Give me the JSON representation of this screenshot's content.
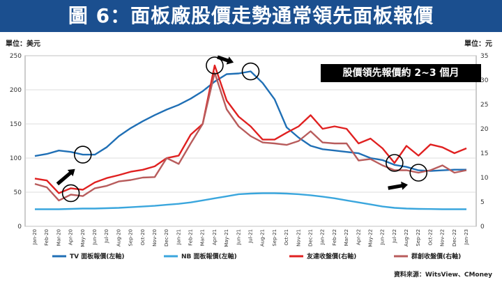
{
  "title": "圖 6：面板廠股價走勢通常領先面板報價",
  "left_unit": "單位：美元",
  "right_unit": "單位：元",
  "callout": "股價領先報價約 2~3 個月",
  "source": "資料來源：WitsView、CMoney",
  "chart_data": {
    "type": "line",
    "x": [
      "Jan-20",
      "Feb-20",
      "Mar-20",
      "Apr-20",
      "May-20",
      "Jun-20",
      "Jul-20",
      "Aug-20",
      "Sep-20",
      "Oct-20",
      "Nov-20",
      "Dec-20",
      "Jan-21",
      "Feb-21",
      "Mar-21",
      "Apr-21",
      "May-21",
      "Jun-21",
      "Jul-21",
      "Aug-21",
      "Sep-21",
      "Oct-21",
      "Nov-21",
      "Dec-21",
      "Jan-22",
      "Feb-22",
      "Mar-22",
      "Apr-22",
      "May-22",
      "Jun-22",
      "Jul-22",
      "Aug-22",
      "Sep-22",
      "Oct-22",
      "Nov-22",
      "Dec-22",
      "Jan-23"
    ],
    "y_left_ticks": [
      0,
      50,
      100,
      150,
      200,
      250
    ],
    "y_right_ticks": [
      0,
      5,
      10,
      15,
      20,
      25,
      30,
      35
    ],
    "ylim_left": [
      0,
      250
    ],
    "ylim_right": [
      0,
      35
    ],
    "grid": true,
    "legend_position": "bottom",
    "series": [
      {
        "name": "TV 面板報價(左軸)",
        "axis": "left",
        "color": "#1f6fb5",
        "values": [
          103,
          106,
          111,
          109,
          105,
          105,
          116,
          132,
          144,
          154,
          163,
          171,
          178,
          187,
          198,
          212,
          223,
          224,
          227,
          210,
          186,
          145,
          130,
          118,
          113,
          111,
          109,
          107,
          100,
          97,
          90,
          87,
          82,
          81,
          82,
          83,
          83
        ]
      },
      {
        "name": "NB 面板報價(左軸)",
        "axis": "left",
        "color": "#3aa6dd",
        "values": [
          25,
          25,
          25,
          25.5,
          26,
          26,
          26.5,
          27,
          28,
          29,
          30,
          31.5,
          33,
          35,
          38,
          41,
          44,
          47,
          48,
          48.5,
          48.5,
          48,
          47,
          45.5,
          43.5,
          41,
          38,
          35,
          32,
          29,
          27,
          26,
          25.5,
          25.3,
          25,
          25,
          25
        ]
      },
      {
        "name": "友達收盤價(右軸)",
        "axis": "right",
        "color": "#e02020",
        "values": [
          9.8,
          9.4,
          6.8,
          7.8,
          7.5,
          9.0,
          9.9,
          10.5,
          11.2,
          11.6,
          12.3,
          14.0,
          14.5,
          18.8,
          21.0,
          33.0,
          25.8,
          22.5,
          20.5,
          17.8,
          17.8,
          19.2,
          20.5,
          22.8,
          20.0,
          20.5,
          20.0,
          17.0,
          18.0,
          16.0,
          13.0,
          16.5,
          14.5,
          16.8,
          16.2,
          15.0,
          16.0
        ]
      },
      {
        "name": "群創收盤價(右軸)",
        "axis": "right",
        "color": "#b85c5c",
        "values": [
          8.7,
          8.0,
          5.3,
          6.5,
          6.2,
          7.8,
          8.3,
          9.2,
          9.5,
          10.0,
          10.1,
          14.0,
          12.8,
          17.0,
          21.0,
          31.5,
          24.0,
          20.5,
          18.5,
          17.2,
          17.0,
          16.7,
          17.5,
          19.5,
          17.2,
          17.0,
          17.0,
          13.5,
          13.8,
          12.5,
          11.5,
          11.5,
          11.0,
          11.5,
          12.5,
          11.0,
          11.5
        ]
      }
    ]
  }
}
